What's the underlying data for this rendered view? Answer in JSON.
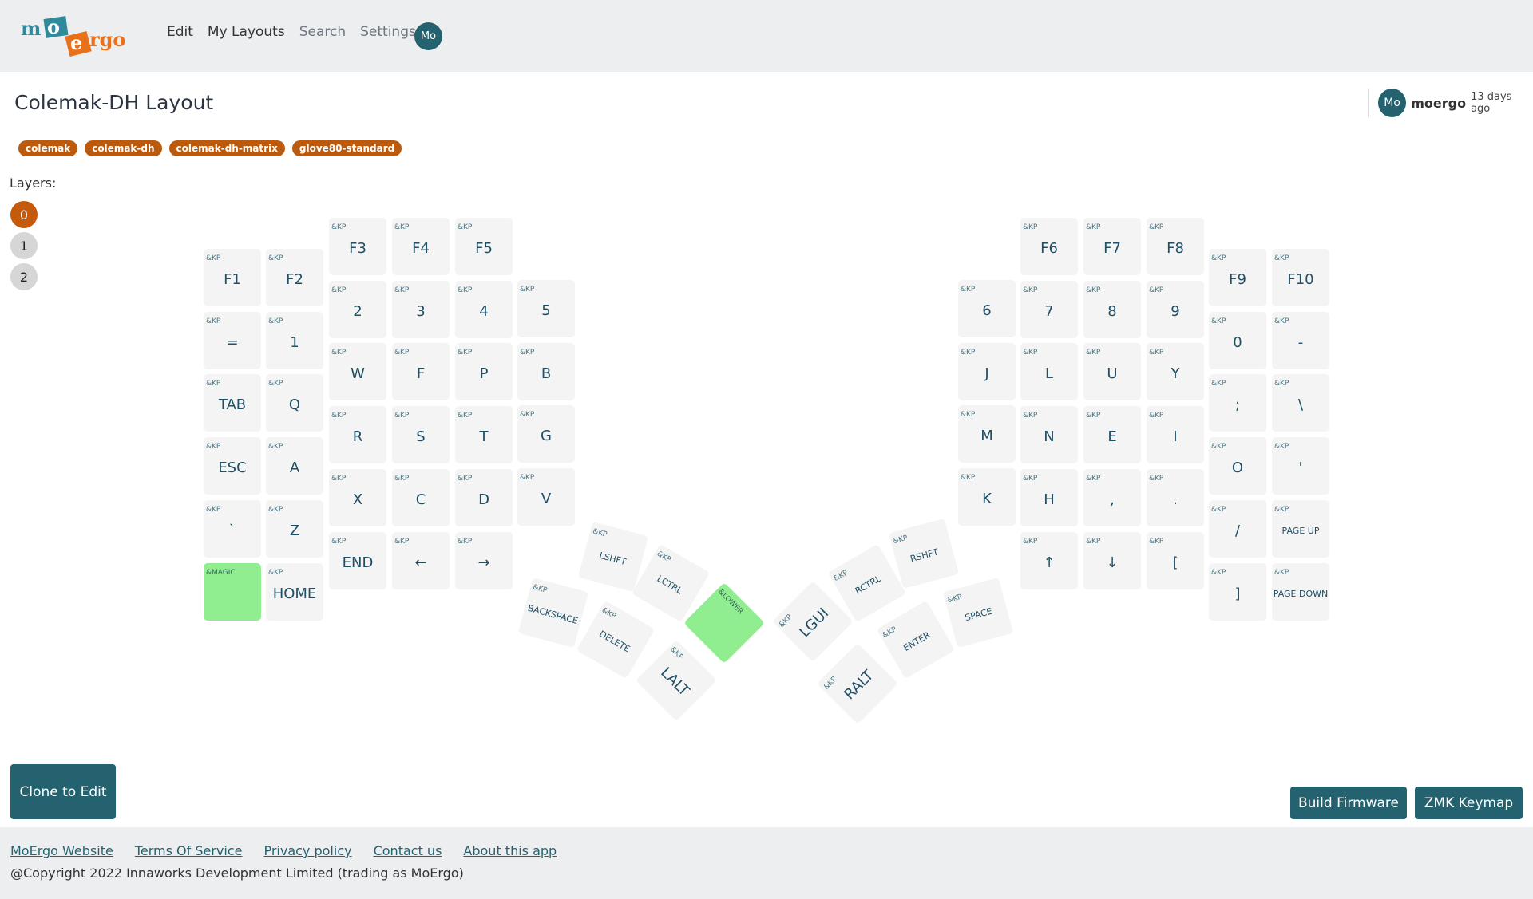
{
  "header": {
    "logo_text": "moergo",
    "nav": [
      "Edit",
      "My Layouts",
      "Search",
      "Settings"
    ],
    "avatar": "Mo"
  },
  "page": {
    "title": "Colemak-DH Layout",
    "author": {
      "avatar": "Mo",
      "name": "moergo",
      "ago": "13 days ago"
    },
    "tags": [
      "colemak",
      "colemak-dh",
      "colemak-dh-matrix",
      "glove80-standard"
    ],
    "layers_label": "Layers:",
    "layers": [
      "0",
      "1",
      "2"
    ],
    "active_layer": "0"
  },
  "colors": {
    "accent": "#256270",
    "tag": "#bb5a0c",
    "active_layer": "#c45a0a",
    "special_key": "#90ee90",
    "key": "#f4f4f4"
  },
  "keyboard": {
    "left_columns": [
      [
        [
          "&KP",
          "F1"
        ],
        [
          "&KP",
          "="
        ],
        [
          "&KP",
          "TAB"
        ],
        [
          "&KP",
          "ESC"
        ],
        [
          "&KP",
          "`"
        ],
        [
          "&MAGIC",
          ""
        ]
      ],
      [
        [
          "&KP",
          "F2"
        ],
        [
          "&KP",
          "1"
        ],
        [
          "&KP",
          "Q"
        ],
        [
          "&KP",
          "A"
        ],
        [
          "&KP",
          "Z"
        ],
        [
          "&KP",
          "HOME"
        ]
      ],
      [
        [
          "&KP",
          "F3"
        ],
        [
          "&KP",
          "2"
        ],
        [
          "&KP",
          "W"
        ],
        [
          "&KP",
          "R"
        ],
        [
          "&KP",
          "X"
        ],
        [
          "&KP",
          "END"
        ]
      ],
      [
        [
          "&KP",
          "F4"
        ],
        [
          "&KP",
          "3"
        ],
        [
          "&KP",
          "F"
        ],
        [
          "&KP",
          "S"
        ],
        [
          "&KP",
          "C"
        ],
        [
          "&KP",
          "←"
        ]
      ],
      [
        [
          "&KP",
          "F5"
        ],
        [
          "&KP",
          "4"
        ],
        [
          "&KP",
          "P"
        ],
        [
          "&KP",
          "T"
        ],
        [
          "&KP",
          "D"
        ],
        [
          "&KP",
          "→"
        ]
      ],
      [
        [
          "&KP",
          "5"
        ],
        [
          "&KP",
          "B"
        ],
        [
          "&KP",
          "G"
        ],
        [
          "&KP",
          "V"
        ]
      ]
    ],
    "right_columns": [
      [
        [
          "&KP",
          "6"
        ],
        [
          "&KP",
          "J"
        ],
        [
          "&KP",
          "M"
        ],
        [
          "&KP",
          "K"
        ]
      ],
      [
        [
          "&KP",
          "F6"
        ],
        [
          "&KP",
          "7"
        ],
        [
          "&KP",
          "L"
        ],
        [
          "&KP",
          "N"
        ],
        [
          "&KP",
          "H"
        ],
        [
          "&KP",
          "↑"
        ]
      ],
      [
        [
          "&KP",
          "F7"
        ],
        [
          "&KP",
          "8"
        ],
        [
          "&KP",
          "U"
        ],
        [
          "&KP",
          "E"
        ],
        [
          "&KP",
          ","
        ],
        [
          "&KP",
          "↓"
        ]
      ],
      [
        [
          "&KP",
          "F8"
        ],
        [
          "&KP",
          "9"
        ],
        [
          "&KP",
          "Y"
        ],
        [
          "&KP",
          "I"
        ],
        [
          "&KP",
          "."
        ],
        [
          "&KP",
          "["
        ]
      ],
      [
        [
          "&KP",
          "F9"
        ],
        [
          "&KP",
          "0"
        ],
        [
          "&KP",
          ";"
        ],
        [
          "&KP",
          "O"
        ],
        [
          "&KP",
          "/"
        ],
        [
          "&KP",
          "]"
        ]
      ],
      [
        [
          "&KP",
          "F10"
        ],
        [
          "&KP",
          "-"
        ],
        [
          "&KP",
          "\\"
        ],
        [
          "&KP",
          "'"
        ],
        [
          "&KP",
          "PAGE UP"
        ],
        [
          "&KP",
          "PAGE DOWN"
        ]
      ]
    ],
    "thumbs": [
      [
        "&KP",
        "LSHFT"
      ],
      [
        "&KP",
        "LCTRL"
      ],
      [
        "&LOWER",
        ""
      ],
      [
        "&KP",
        "BACKSPACE"
      ],
      [
        "&KP",
        "DELETE"
      ],
      [
        "&KP",
        "LALT"
      ],
      [
        "&KP",
        "RSHFT"
      ],
      [
        "&KP",
        "RCTRL"
      ],
      [
        "&KP",
        "LGUI"
      ],
      [
        "&KP",
        "SPACE"
      ],
      [
        "&KP",
        "ENTER"
      ],
      [
        "&KP",
        "RALT"
      ]
    ]
  },
  "actions": {
    "clone": "Clone to Edit",
    "build": "Build Firmware",
    "zmk": "ZMK Keymap"
  },
  "footer": {
    "links": [
      "MoErgo Website",
      "Terms Of Service",
      "Privacy policy",
      "Contact us",
      "About this app"
    ],
    "copyright": "@Copyright 2022 Innaworks Development Limited (trading as MoErgo)"
  }
}
